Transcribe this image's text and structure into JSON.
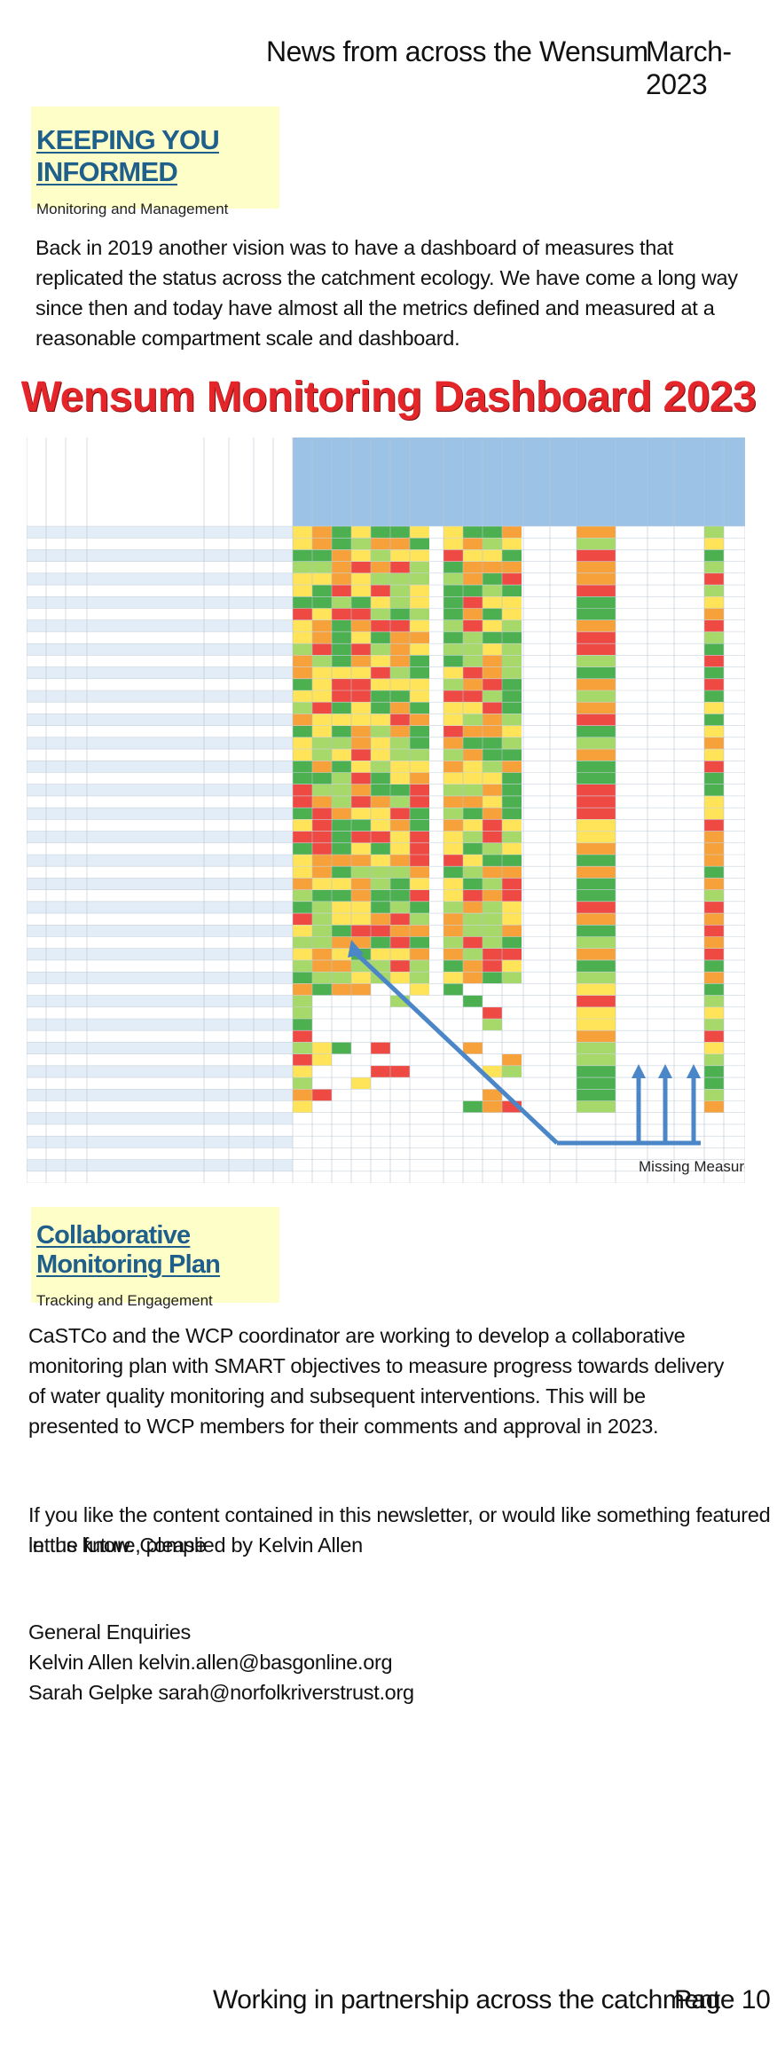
{
  "header": {
    "title": "News from across the Wensum",
    "date": "March-2023"
  },
  "section1": {
    "title": "KEEPING YOU INFORMED",
    "subtitle": "Monitoring and Management",
    "body": "Back in 2019 another vision was to have a dashboard of measures that replicated the status across the catchment ecology. We have come a long way since then and today have almost all the metrics defined and measured at a reasonable compartment scale and dashboard."
  },
  "dashboard": {
    "title": "Wensum Monitoring Dashboard 2023",
    "annotation": "Missing Measures",
    "colors": {
      "green": "#4cb050",
      "light_green": "#a6d86a",
      "yellow": "#ffe45a",
      "orange": "#f6a13a",
      "red": "#ee4a43",
      "blue_header": "#9cc3e6",
      "row_alt": "#e3edf8",
      "arrow": "#4a86c8"
    }
  },
  "section2": {
    "title": "Collaborative Monitoring Plan",
    "subtitle": "Tracking and Engagement",
    "body": "CaSTCo and the WCP coordinator are working to develop a collaborative monitoring plan with SMART objectives to measure progress towards delivery of water quality monitoring and subsequent interventions.  This will be presented to WCP members for their comments and approval in 2023."
  },
  "feedback": {
    "line1": "If you like the content contained in this newsletter, or would like something featured in the future, please",
    "line2": "let us know. Complied by Kelvin Allen"
  },
  "contacts": {
    "heading": "General Enquiries",
    "line1": "Kelvin Allen kelvin.allen@basgonline.org",
    "line2": "Sarah Gelpke sarah@norfolkriverstrust.org"
  },
  "footer": {
    "tagline": "Working in partnership across the catchment",
    "page": "Page 10"
  }
}
